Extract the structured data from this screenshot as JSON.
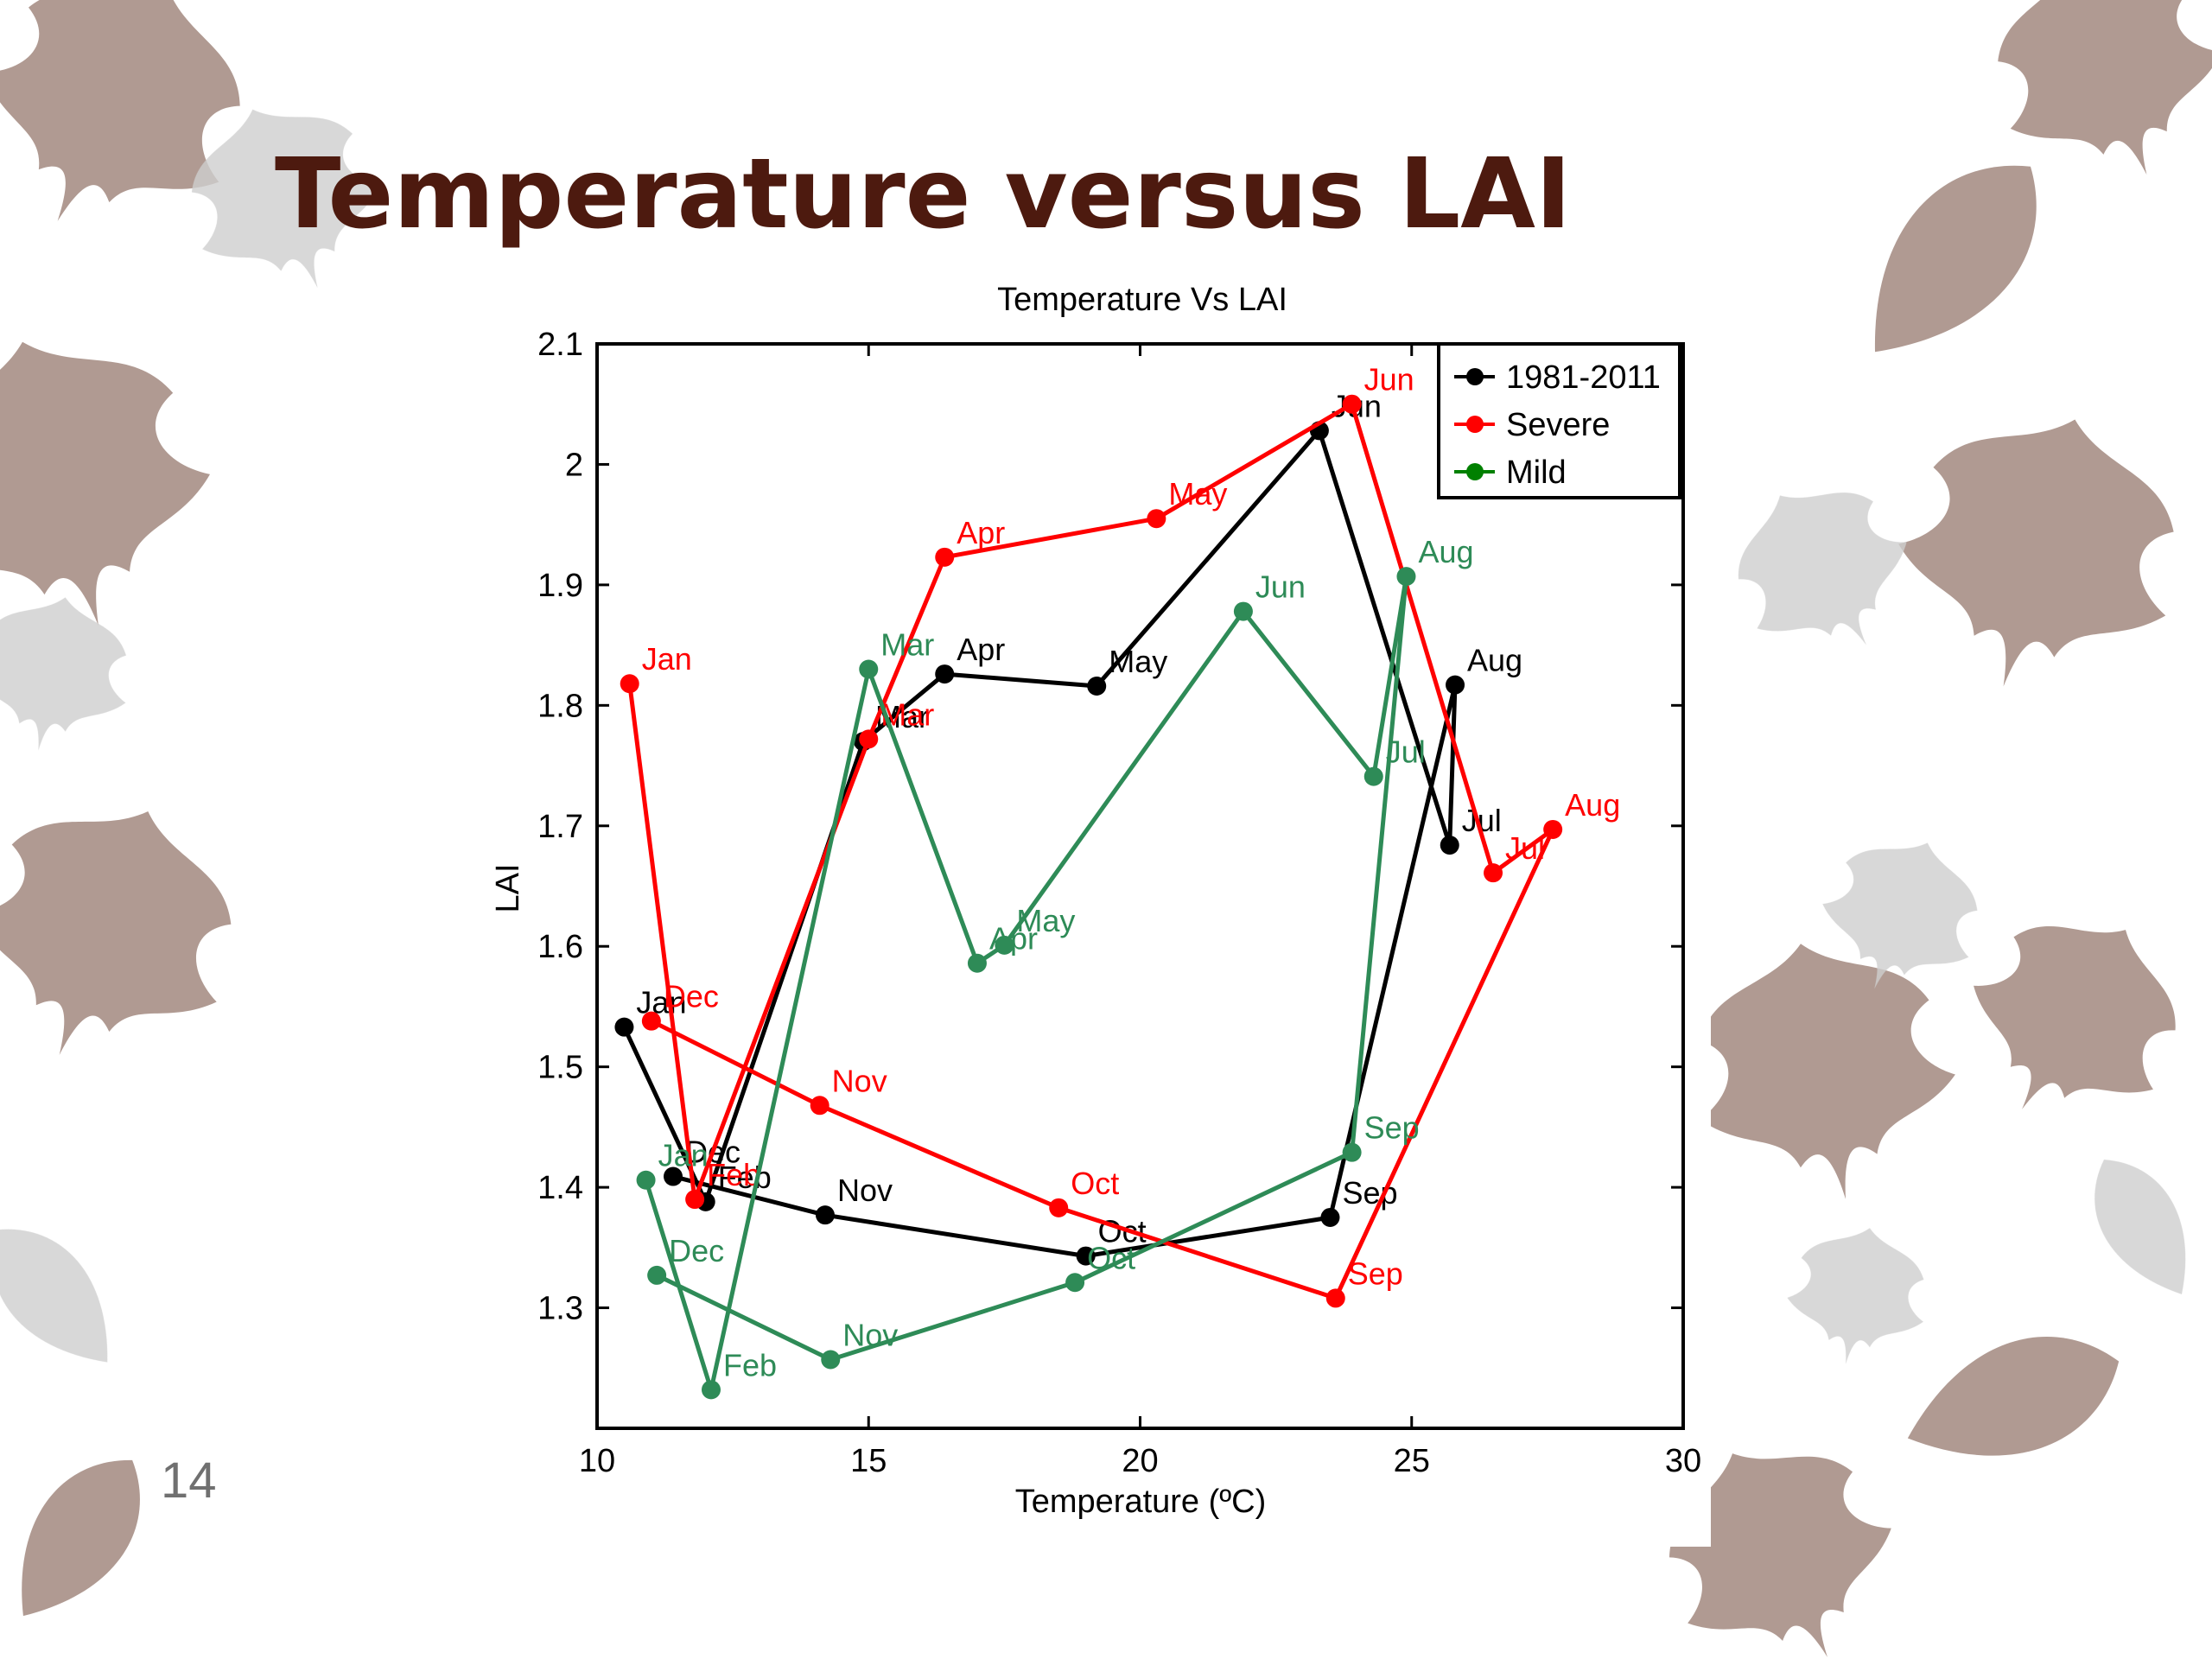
{
  "slide": {
    "title": "Temperature versus LAI",
    "page_number": "14"
  },
  "colors": {
    "title": "#4d1a0f",
    "leaf": "#b09a92",
    "leaf_light": "#cfcfcf",
    "series_1981_2011": "#000000",
    "series_severe": "#ff0000",
    "series_mild_line": "#2e8b57",
    "series_mild_legend": "#008000"
  },
  "chart_data": {
    "type": "line",
    "title": "Temperature Vs LAI",
    "xlabel": "Temperature (ºC)",
    "ylabel": "LAI",
    "xlim": [
      10,
      30
    ],
    "ylim": [
      1.2,
      2.1
    ],
    "xticks": [
      10,
      15,
      20,
      25,
      30
    ],
    "yticks": [
      1.3,
      1.4,
      1.5,
      1.6,
      1.7,
      1.8,
      1.9,
      2.0,
      2.1
    ],
    "ytick_labels": [
      "1.3",
      "1.4",
      "1.5",
      "1.6",
      "1.7",
      "1.8",
      "1.9",
      "2",
      "2.1"
    ],
    "grid": false,
    "legend": "top-right",
    "series": [
      {
        "name": "1981-2011",
        "color": "#000000",
        "points": [
          {
            "label": "Jan",
            "x": 10.5,
            "y": 1.533
          },
          {
            "label": "Feb",
            "x": 12.0,
            "y": 1.388
          },
          {
            "label": "Mar",
            "x": 14.9,
            "y": 1.77
          },
          {
            "label": "Apr",
            "x": 16.4,
            "y": 1.826
          },
          {
            "label": "May",
            "x": 19.2,
            "y": 1.816
          },
          {
            "label": "Jun",
            "x": 23.3,
            "y": 2.028
          },
          {
            "label": "Jul",
            "x": 25.7,
            "y": 1.684
          },
          {
            "label": "Aug",
            "x": 25.8,
            "y": 1.817
          },
          {
            "label": "Sep",
            "x": 23.5,
            "y": 1.375
          },
          {
            "label": "Oct",
            "x": 19.0,
            "y": 1.343
          },
          {
            "label": "Nov",
            "x": 14.2,
            "y": 1.377
          },
          {
            "label": "Dec",
            "x": 11.4,
            "y": 1.409
          }
        ]
      },
      {
        "name": "Severe",
        "color": "#ff0000",
        "points": [
          {
            "label": "Jan",
            "x": 10.6,
            "y": 1.818
          },
          {
            "label": "Feb",
            "x": 11.8,
            "y": 1.39
          },
          {
            "label": "Mar",
            "x": 15.0,
            "y": 1.772
          },
          {
            "label": "Apr",
            "x": 16.4,
            "y": 1.923
          },
          {
            "label": "May",
            "x": 20.3,
            "y": 1.955
          },
          {
            "label": "Jun",
            "x": 23.9,
            "y": 2.05
          },
          {
            "label": "Jul",
            "x": 26.5,
            "y": 1.661
          },
          {
            "label": "Aug",
            "x": 27.6,
            "y": 1.697
          },
          {
            "label": "Sep",
            "x": 23.6,
            "y": 1.308
          },
          {
            "label": "Oct",
            "x": 18.5,
            "y": 1.383
          },
          {
            "label": "Nov",
            "x": 14.1,
            "y": 1.468
          },
          {
            "label": "Dec",
            "x": 11.0,
            "y": 1.538
          }
        ]
      },
      {
        "name": "Mild",
        "color": "#2e8b57",
        "points": [
          {
            "label": "Jan",
            "x": 10.9,
            "y": 1.406
          },
          {
            "label": "Feb",
            "x": 12.1,
            "y": 1.232
          },
          {
            "label": "Mar",
            "x": 15.0,
            "y": 1.83
          },
          {
            "label": "Apr",
            "x": 17.0,
            "y": 1.586
          },
          {
            "label": "May",
            "x": 17.5,
            "y": 1.601
          },
          {
            "label": "Jun",
            "x": 21.9,
            "y": 1.878
          },
          {
            "label": "Jul",
            "x": 24.3,
            "y": 1.741
          },
          {
            "label": "Aug",
            "x": 24.9,
            "y": 1.907
          },
          {
            "label": "Sep",
            "x": 23.9,
            "y": 1.429
          },
          {
            "label": "Oct",
            "x": 18.8,
            "y": 1.321
          },
          {
            "label": "Nov",
            "x": 14.3,
            "y": 1.257
          },
          {
            "label": "Dec",
            "x": 11.1,
            "y": 1.327
          }
        ]
      }
    ]
  }
}
